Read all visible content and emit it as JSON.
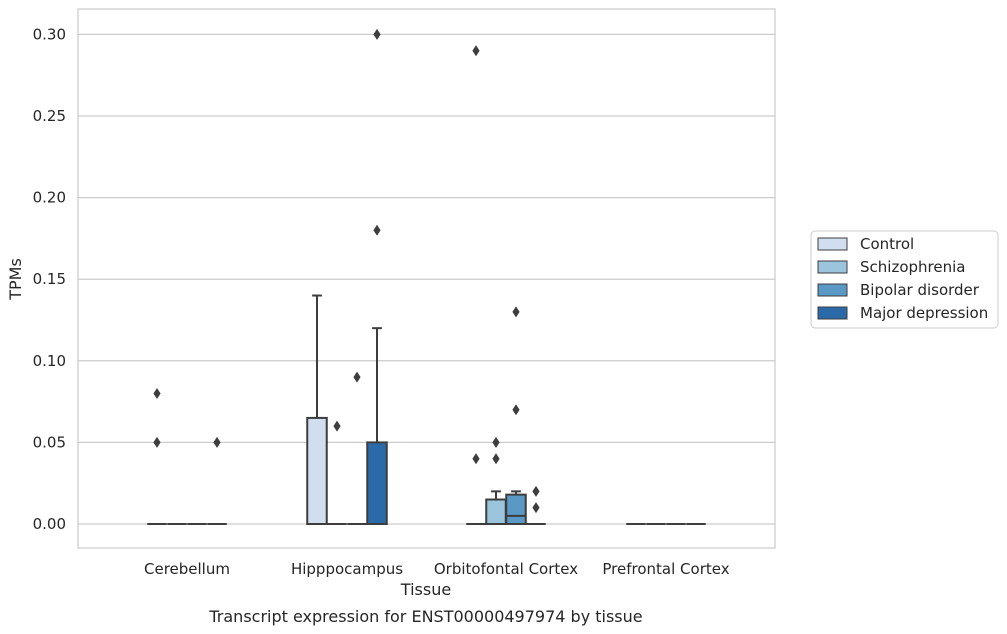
{
  "chart_data": {
    "type": "box",
    "title": "Transcript expression for ENST00000497974 by tissue",
    "xlabel": "Tissue",
    "ylabel": "TPMs",
    "ylim": [
      -0.0145,
      0.315
    ],
    "yticks": [
      "0.00",
      "0.05",
      "0.10",
      "0.15",
      "0.20",
      "0.25",
      "0.30"
    ],
    "grid": true,
    "legend_position": "right",
    "categories": [
      "Cerebellum",
      "Hipppocampus",
      "Orbitofontal Cortex",
      "Prefrontal Cortex"
    ],
    "series": [
      {
        "name": "Control",
        "color": "#d0deef",
        "boxes": [
          {
            "category": "Cerebellum",
            "q1": 0,
            "median": 0,
            "q3": 0,
            "whisker_low": 0,
            "whisker_high": 0,
            "outliers": [
              0.08,
              0.05
            ]
          },
          {
            "category": "Hipppocampus",
            "q1": 0,
            "median": 0,
            "q3": 0.065,
            "whisker_low": 0,
            "whisker_high": 0.14,
            "outliers": []
          },
          {
            "category": "Orbitofontal Cortex",
            "q1": 0,
            "median": 0,
            "q3": 0,
            "whisker_low": 0,
            "whisker_high": 0,
            "outliers": [
              0.29,
              0.04
            ]
          },
          {
            "category": "Prefrontal Cortex",
            "q1": 0,
            "median": 0,
            "q3": 0,
            "whisker_low": 0,
            "whisker_high": 0,
            "outliers": []
          }
        ]
      },
      {
        "name": "Schizophrenia",
        "color": "#9bc4dd",
        "boxes": [
          {
            "category": "Cerebellum",
            "q1": 0,
            "median": 0,
            "q3": 0,
            "whisker_low": 0,
            "whisker_high": 0,
            "outliers": []
          },
          {
            "category": "Hipppocampus",
            "q1": 0,
            "median": 0,
            "q3": 0,
            "whisker_low": 0,
            "whisker_high": 0,
            "outliers": [
              0.06
            ]
          },
          {
            "category": "Orbitofontal Cortex",
            "q1": 0,
            "median": 0,
            "q3": 0.015,
            "whisker_low": 0,
            "whisker_high": 0.02,
            "outliers": [
              0.05,
              0.04
            ]
          },
          {
            "category": "Prefrontal Cortex",
            "q1": 0,
            "median": 0,
            "q3": 0,
            "whisker_low": 0,
            "whisker_high": 0,
            "outliers": []
          }
        ]
      },
      {
        "name": "Bipolar disorder",
        "color": "#5a98c6",
        "boxes": [
          {
            "category": "Cerebellum",
            "q1": 0,
            "median": 0,
            "q3": 0,
            "whisker_low": 0,
            "whisker_high": 0,
            "outliers": []
          },
          {
            "category": "Hipppocampus",
            "q1": 0,
            "median": 0,
            "q3": 0,
            "whisker_low": 0,
            "whisker_high": 0,
            "outliers": [
              0.09
            ]
          },
          {
            "category": "Orbitofontal Cortex",
            "q1": 0,
            "median": 0.005,
            "q3": 0.018,
            "whisker_low": 0,
            "whisker_high": 0.02,
            "outliers": [
              0.13,
              0.07
            ]
          },
          {
            "category": "Prefrontal Cortex",
            "q1": 0,
            "median": 0,
            "q3": 0,
            "whisker_low": 0,
            "whisker_high": 0,
            "outliers": []
          }
        ]
      },
      {
        "name": "Major depression",
        "color": "#2a6aa8",
        "boxes": [
          {
            "category": "Cerebellum",
            "q1": 0,
            "median": 0,
            "q3": 0,
            "whisker_low": 0,
            "whisker_high": 0,
            "outliers": [
              0.05
            ]
          },
          {
            "category": "Hipppocampus",
            "q1": 0,
            "median": 0,
            "q3": 0.05,
            "whisker_low": 0,
            "whisker_high": 0.12,
            "outliers": [
              0.3,
              0.18
            ]
          },
          {
            "category": "Orbitofontal Cortex",
            "q1": 0,
            "median": 0,
            "q3": 0,
            "whisker_low": 0,
            "whisker_high": 0,
            "outliers": [
              0.02,
              0.01
            ]
          },
          {
            "category": "Prefrontal Cortex",
            "q1": 0,
            "median": 0,
            "q3": 0,
            "whisker_low": 0,
            "whisker_high": 0,
            "outliers": []
          }
        ]
      }
    ]
  }
}
